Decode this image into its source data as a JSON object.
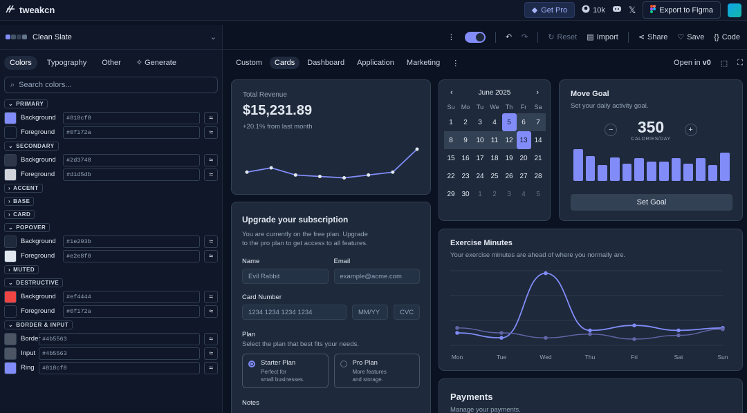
{
  "app": {
    "name": "tweakcn",
    "get_pro": "Get Pro",
    "github_stars": "10k",
    "export": "Export to Figma"
  },
  "theme": {
    "name": "Clean Slate",
    "swatch_colors": [
      "#818cf8",
      "#475569",
      "#334155",
      "#64748b"
    ]
  },
  "left_tabs": [
    "Colors",
    "Typography",
    "Other",
    "Generate"
  ],
  "search_placeholder": "Search colors...",
  "sections": {
    "primary": {
      "title": "PRIMARY",
      "rows": [
        {
          "label": "Background",
          "hex": "#818cf8"
        },
        {
          "label": "Foreground",
          "hex": "#0f172a"
        }
      ]
    },
    "secondary": {
      "title": "SECONDARY",
      "rows": [
        {
          "label": "Background",
          "hex": "#2d3748"
        },
        {
          "label": "Foreground",
          "hex": "#d1d5db"
        }
      ]
    },
    "accent": "ACCENT",
    "base": "BASE",
    "card": "CARD",
    "popover": {
      "title": "POPOVER",
      "rows": [
        {
          "label": "Background",
          "hex": "#1e293b"
        },
        {
          "label": "Foreground",
          "hex": "#e2e8f0"
        }
      ]
    },
    "muted": "MUTED",
    "destructive": {
      "title": "DESTRUCTIVE",
      "rows": [
        {
          "label": "Background",
          "hex": "#ef4444"
        },
        {
          "label": "Foreground",
          "hex": "#0f172a"
        }
      ]
    },
    "border_input": {
      "title": "BORDER & INPUT",
      "rows": [
        {
          "label": "Border",
          "hex": "#4b5563"
        },
        {
          "label": "Input",
          "hex": "#4b5563"
        },
        {
          "label": "Ring",
          "hex": "#818cf8"
        }
      ]
    }
  },
  "toolbar": {
    "reset": "Reset",
    "import": "Import",
    "share": "Share",
    "save": "Save",
    "code": "Code"
  },
  "preview_tabs": [
    "Custom",
    "Cards",
    "Dashboard",
    "Application",
    "Marketing"
  ],
  "open_in": "Open in",
  "revenue": {
    "title": "Total Revenue",
    "amount": "$15,231.89",
    "change": "+20.1% from last month",
    "values": [
      10,
      13,
      8,
      7,
      6,
      8,
      10,
      26
    ]
  },
  "calendar": {
    "month": "June 2025",
    "days": [
      "Su",
      "Mo",
      "Tu",
      "We",
      "Th",
      "Fr",
      "Sa"
    ],
    "weeks": [
      [
        "1",
        "2",
        "3",
        "4",
        "5",
        "6",
        "7"
      ],
      [
        "8",
        "9",
        "10",
        "11",
        "12",
        "13",
        "14"
      ],
      [
        "15",
        "16",
        "17",
        "18",
        "19",
        "20",
        "21"
      ],
      [
        "22",
        "23",
        "24",
        "25",
        "26",
        "27",
        "28"
      ],
      [
        "29",
        "30",
        "1",
        "2",
        "3",
        "4",
        "5"
      ]
    ]
  },
  "goal": {
    "title": "Move Goal",
    "subtitle": "Set your daily activity goal.",
    "value": "350",
    "unit": "CALORIES/DAY",
    "button": "Set Goal",
    "bars": [
      45,
      35,
      23,
      33,
      24,
      32,
      27,
      27,
      32,
      24,
      32,
      23,
      40
    ]
  },
  "subscription": {
    "title": "Upgrade your subscription",
    "desc1": "You are currently on the free plan. Upgrade",
    "desc2": "to the pro plan to get access to all features.",
    "name_label": "Name",
    "name_value": "Evil Rabbit",
    "email_label": "Email",
    "email_placeholder": "example@acme.com",
    "card_label": "Card Number",
    "card_placeholder": "1234 1234 1234 1234",
    "mmyy": "MM/YY",
    "cvc": "CVC",
    "plan_label": "Plan",
    "plan_desc": "Select the plan that best fits your needs.",
    "starter": {
      "title": "Starter Plan",
      "l1": "Perfect for",
      "l2": "small businesses."
    },
    "pro": {
      "title": "Pro Plan",
      "l1": "More features",
      "l2": "and storage."
    },
    "notes": "Notes"
  },
  "exercise": {
    "title": "Exercise Minutes",
    "subtitle": "Your exercise minutes are ahead of where you normally are.",
    "chart_data": {
      "type": "line",
      "categories": [
        "Mon",
        "Tue",
        "Wed",
        "Thu",
        "Fri",
        "Sat",
        "Sun"
      ],
      "series": [
        {
          "values": [
            150,
            130,
            390,
            160,
            180,
            160,
            170
          ],
          "color": "#818cf8"
        },
        {
          "values": [
            170,
            150,
            130,
            145,
            125,
            140,
            165
          ],
          "color": "#6366a8"
        }
      ]
    }
  },
  "payments": {
    "title": "Payments",
    "subtitle": "Manage your payments."
  }
}
